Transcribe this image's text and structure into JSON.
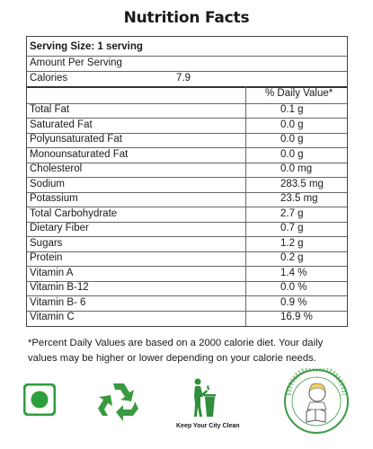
{
  "title": "Nutrition Facts",
  "serving_size": "Serving Size: 1 serving",
  "amount_per_serving": "Amount Per Serving",
  "calories_label": "Calories",
  "calories_value": "7.9",
  "daily_value_header": "% Daily Value*",
  "nutrients": [
    {
      "name": "Total Fat",
      "value": "0.1 g"
    },
    {
      "name": "Saturated Fat",
      "value": "0.0 g"
    },
    {
      "name": "Polyunsaturated Fat",
      "value": "0.0 g"
    },
    {
      "name": "Monounsaturated Fat",
      "value": "0.0 g"
    },
    {
      "name": "Cholesterol",
      "value": "0.0 mg"
    },
    {
      "name": "Sodium",
      "value": "283.5 mg"
    },
    {
      "name": "Potassium",
      "value": "23.5 mg"
    },
    {
      "name": "Total Carbohydrate",
      "value": "2.7 g"
    },
    {
      "name": "Dietary Fiber",
      "value": "0.7 g"
    },
    {
      "name": "Sugars",
      "value": "1.2 g"
    },
    {
      "name": "Protein",
      "value": "0.2 g"
    },
    {
      "name": "Vitamin A",
      "value": "1.4 %"
    },
    {
      "name": "Vitamin B-12",
      "value": "0.0 %"
    },
    {
      "name": "Vitamin B- 6",
      "value": "0.9 %"
    },
    {
      "name": "Vitamin C",
      "value": "16.9 %"
    }
  ],
  "footnote": "*Percent Daily Values are based on a 2000 calorie diet. Your daily values may be higher or lower depending on your calorie needs.",
  "icons": {
    "veg": "veg-symbol-icon",
    "recycle": "recycle-icon",
    "keep_clean": "keep-city-clean-icon",
    "keep_clean_text": "Keep Your City Clean",
    "education": "child-education-seal-icon"
  },
  "colors": {
    "veg_green": "#2e9e3e",
    "recycle_green": "#3a9a42",
    "seal_green": "#3d9b45"
  }
}
